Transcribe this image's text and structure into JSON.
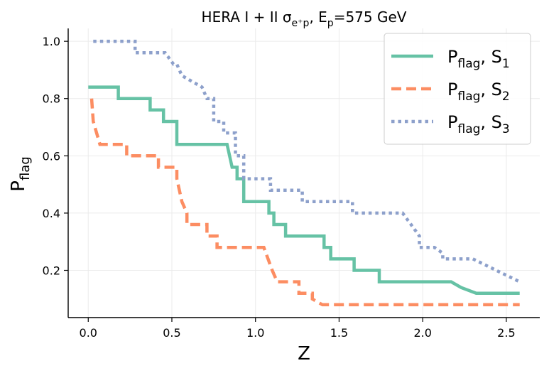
{
  "chart_data": {
    "type": "line",
    "title": {
      "main": "HERA I + II σ",
      "sub": "e⁺p",
      "tail": ", E",
      "sub2": "p",
      "tail2": "=575 GeV"
    },
    "xlabel": "Z",
    "ylabel": {
      "main": "P",
      "sub": "flag"
    },
    "xlim": [
      -0.12,
      2.7
    ],
    "ylim": [
      0.035,
      1.045
    ],
    "xticks": [
      0.0,
      0.5,
      1.0,
      1.5,
      2.0,
      2.5
    ],
    "xtick_labels": [
      "0.0",
      "0.5",
      "1.0",
      "1.5",
      "2.0",
      "2.5"
    ],
    "yticks": [
      0.2,
      0.4,
      0.6,
      0.8,
      1.0
    ],
    "ytick_labels": [
      "0.2",
      "0.4",
      "0.6",
      "0.8",
      "1.0"
    ],
    "grid": true,
    "legend_position": "top-right",
    "series": [
      {
        "name": "P_flag, S_1",
        "legend_main": "P",
        "legend_sub": "flag",
        "legend_sep": ", S",
        "legend_idx": "1",
        "color": "#66c2a5",
        "style": "solid",
        "x": [
          0.0,
          0.18,
          0.18,
          0.37,
          0.37,
          0.45,
          0.45,
          0.53,
          0.53,
          0.83,
          0.86,
          0.89,
          0.89,
          0.93,
          0.93,
          1.08,
          1.08,
          1.11,
          1.11,
          1.18,
          1.18,
          1.23,
          1.23,
          1.41,
          1.41,
          1.45,
          1.45,
          1.5,
          1.5,
          1.59,
          1.59,
          1.67,
          1.67,
          1.74,
          1.74,
          2.17,
          2.23,
          2.32,
          2.32,
          2.58
        ],
        "y": [
          0.84,
          0.84,
          0.8,
          0.8,
          0.76,
          0.76,
          0.72,
          0.72,
          0.64,
          0.64,
          0.56,
          0.56,
          0.52,
          0.52,
          0.44,
          0.44,
          0.4,
          0.4,
          0.36,
          0.36,
          0.32,
          0.32,
          0.32,
          0.32,
          0.28,
          0.28,
          0.24,
          0.24,
          0.24,
          0.24,
          0.2,
          0.2,
          0.2,
          0.2,
          0.16,
          0.16,
          0.14,
          0.12,
          0.12,
          0.12
        ]
      },
      {
        "name": "P_flag, S_2",
        "legend_main": "P",
        "legend_sub": "flag",
        "legend_sep": ", S",
        "legend_idx": "2",
        "color": "#fc8d62",
        "style": "dashed",
        "x": [
          0.02,
          0.03,
          0.05,
          0.07,
          0.07,
          0.23,
          0.23,
          0.42,
          0.42,
          0.53,
          0.53,
          0.56,
          0.59,
          0.59,
          0.71,
          0.71,
          0.77,
          0.77,
          1.05,
          1.05,
          1.1,
          1.13,
          1.13,
          1.26,
          1.26,
          1.34,
          1.34,
          1.4,
          1.4,
          2.58
        ],
        "y": [
          0.8,
          0.72,
          0.68,
          0.64,
          0.64,
          0.64,
          0.6,
          0.6,
          0.56,
          0.56,
          0.52,
          0.44,
          0.4,
          0.36,
          0.36,
          0.32,
          0.32,
          0.28,
          0.28,
          0.28,
          0.2,
          0.16,
          0.16,
          0.16,
          0.12,
          0.12,
          0.1,
          0.08,
          0.08,
          0.08
        ]
      },
      {
        "name": "P_flag, S_3",
        "legend_main": "P",
        "legend_sub": "flag",
        "legend_sep": ", S",
        "legend_idx": "3",
        "color": "#8da0cb",
        "style": "dotted",
        "x": [
          0.03,
          0.28,
          0.28,
          0.46,
          0.46,
          0.51,
          0.53,
          0.56,
          0.56,
          0.68,
          0.68,
          0.71,
          0.75,
          0.75,
          0.81,
          0.81,
          0.88,
          0.88,
          0.93,
          0.93,
          1.09,
          1.09,
          1.23,
          1.23,
          1.28,
          1.28,
          1.39,
          1.39,
          1.58,
          1.58,
          1.88,
          1.88,
          1.93,
          1.98,
          1.98,
          2.07,
          2.07,
          2.12,
          2.12,
          2.3,
          2.3,
          2.58
        ],
        "y": [
          1.0,
          1.0,
          0.96,
          0.96,
          0.96,
          0.92,
          0.92,
          0.88,
          0.88,
          0.84,
          0.84,
          0.8,
          0.8,
          0.72,
          0.72,
          0.68,
          0.68,
          0.6,
          0.6,
          0.52,
          0.52,
          0.48,
          0.48,
          0.48,
          0.48,
          0.44,
          0.44,
          0.44,
          0.44,
          0.4,
          0.4,
          0.4,
          0.36,
          0.32,
          0.28,
          0.28,
          0.28,
          0.26,
          0.24,
          0.24,
          0.24,
          0.16
        ]
      }
    ]
  }
}
